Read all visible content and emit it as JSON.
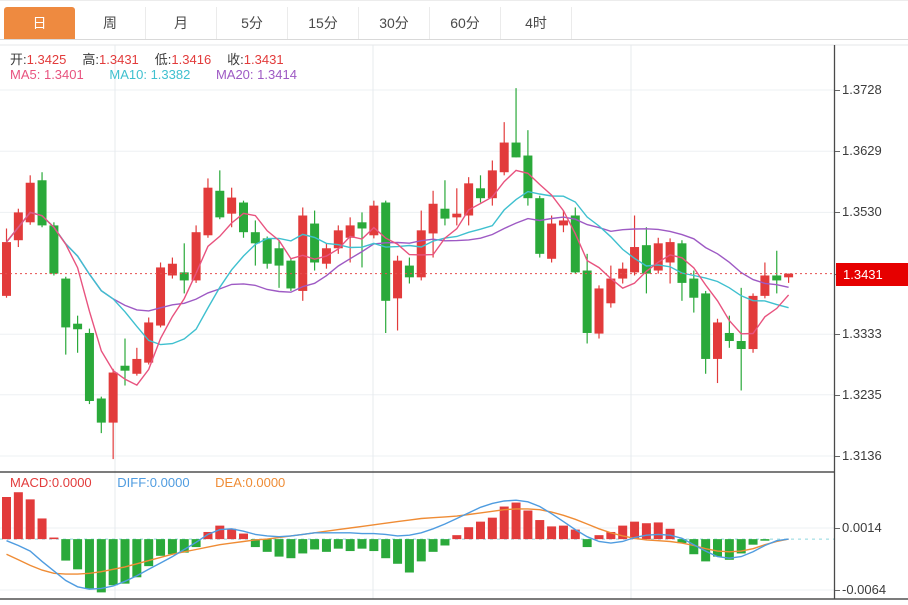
{
  "tabs": {
    "items": [
      {
        "label": "日",
        "active": true
      },
      {
        "label": "周",
        "active": false
      },
      {
        "label": "月",
        "active": false
      },
      {
        "label": "5分",
        "active": false
      },
      {
        "label": "15分",
        "active": false
      },
      {
        "label": "30分",
        "active": false
      },
      {
        "label": "60分",
        "active": false
      },
      {
        "label": "4时",
        "active": false
      }
    ]
  },
  "ohlc_bar": {
    "open_label": "开:",
    "open_value": "1.3425",
    "high_label": "高:",
    "high_value": "1.3431",
    "low_label": "低:",
    "low_value": "1.3416",
    "close_label": "收:",
    "close_value": "1.3431"
  },
  "ma_bar": {
    "ma5_label": "MA5:",
    "ma5_value": "1.3401",
    "ma10_label": "MA10:",
    "ma10_value": "1.3382",
    "ma20_label": "MA20:",
    "ma20_value": "1.3414"
  },
  "macd_bar": {
    "macd_label": "MACD:",
    "macd_value": "0.0000",
    "diff_label": "DIFF:",
    "diff_value": "0.0000",
    "dea_label": "DEA:",
    "dea_value": "0.0000"
  },
  "chart_data": {
    "type": "candlestick",
    "price_panel": {
      "yticks": [
        1.3728,
        1.3629,
        1.353,
        1.3431,
        1.3333,
        1.3235,
        1.3136
      ],
      "current_price": 1.3431,
      "current_price_label": "1.3431",
      "ma_periods": [
        5,
        10,
        20
      ],
      "candles": [
        [
          1.3395,
          1.3504,
          1.3392,
          1.3482
        ],
        [
          1.3485,
          1.3536,
          1.3474,
          1.353
        ],
        [
          1.3514,
          1.359,
          1.351,
          1.3578
        ],
        [
          1.3582,
          1.3595,
          1.3506,
          1.3509
        ],
        [
          1.3509,
          1.3514,
          1.3428,
          1.3431
        ],
        [
          1.3423,
          1.3426,
          1.33,
          1.3344
        ],
        [
          1.335,
          1.3363,
          1.3303,
          1.3341
        ],
        [
          1.3335,
          1.3342,
          1.322,
          1.3225
        ],
        [
          1.3229,
          1.3232,
          1.3173,
          1.319
        ],
        [
          1.319,
          1.3277,
          1.3131,
          1.3271
        ],
        [
          1.3282,
          1.3326,
          1.325,
          1.3274
        ],
        [
          1.3269,
          1.3311,
          1.3266,
          1.3293
        ],
        [
          1.3287,
          1.336,
          1.3284,
          1.3352
        ],
        [
          1.3347,
          1.3449,
          1.3344,
          1.3441
        ],
        [
          1.3428,
          1.3457,
          1.3423,
          1.3447
        ],
        [
          1.3433,
          1.348,
          1.3399,
          1.342
        ],
        [
          1.342,
          1.3509,
          1.3416,
          1.3498
        ],
        [
          1.3493,
          1.3585,
          1.3489,
          1.357
        ],
        [
          1.3565,
          1.3598,
          1.3519,
          1.3522
        ],
        [
          1.3528,
          1.357,
          1.3506,
          1.3554
        ],
        [
          1.3546,
          1.3549,
          1.3489,
          1.3498
        ],
        [
          1.3498,
          1.3517,
          1.3444,
          1.348
        ],
        [
          1.3488,
          1.3491,
          1.3439,
          1.3447
        ],
        [
          1.3472,
          1.3485,
          1.3408,
          1.3444
        ],
        [
          1.3452,
          1.3455,
          1.3403,
          1.3407
        ],
        [
          1.3403,
          1.3538,
          1.3387,
          1.3525
        ],
        [
          1.3512,
          1.3533,
          1.3436,
          1.3449
        ],
        [
          1.3447,
          1.348,
          1.3439,
          1.3472
        ],
        [
          1.3472,
          1.3509,
          1.3463,
          1.3501
        ],
        [
          1.3489,
          1.3522,
          1.3449,
          1.3509
        ],
        [
          1.3514,
          1.353,
          1.3441,
          1.3504
        ],
        [
          1.3493,
          1.3549,
          1.3488,
          1.3541
        ],
        [
          1.3546,
          1.3549,
          1.3335,
          1.3387
        ],
        [
          1.3391,
          1.346,
          1.3339,
          1.3452
        ],
        [
          1.3444,
          1.3457,
          1.3415,
          1.3425
        ],
        [
          1.3425,
          1.3533,
          1.342,
          1.3501
        ],
        [
          1.3496,
          1.3565,
          1.3457,
          1.3544
        ],
        [
          1.3536,
          1.3582,
          1.3509,
          1.352
        ],
        [
          1.3522,
          1.3569,
          1.3509,
          1.3528
        ],
        [
          1.3525,
          1.3587,
          1.3509,
          1.3577
        ],
        [
          1.3569,
          1.359,
          1.3546,
          1.3553
        ],
        [
          1.3553,
          1.3614,
          1.3541,
          1.3598
        ],
        [
          1.3595,
          1.3676,
          1.359,
          1.3643
        ],
        [
          1.3643,
          1.3731,
          1.3619,
          1.3619
        ],
        [
          1.3622,
          1.3663,
          1.3541,
          1.3553
        ],
        [
          1.3553,
          1.3557,
          1.3457,
          1.3463
        ],
        [
          1.3455,
          1.3525,
          1.3449,
          1.3512
        ],
        [
          1.3509,
          1.3533,
          1.3498,
          1.3517
        ],
        [
          1.3525,
          1.3538,
          1.3431,
          1.3433
        ],
        [
          1.3436,
          1.3463,
          1.3318,
          1.3335
        ],
        [
          1.3334,
          1.3412,
          1.3326,
          1.3407
        ],
        [
          1.3383,
          1.3444,
          1.3376,
          1.3423
        ],
        [
          1.3423,
          1.3449,
          1.3415,
          1.3439
        ],
        [
          1.3433,
          1.3525,
          1.3428,
          1.3474
        ],
        [
          1.3477,
          1.3506,
          1.3399,
          1.3431
        ],
        [
          1.3436,
          1.3489,
          1.3431,
          1.348
        ],
        [
          1.3449,
          1.3488,
          1.3415,
          1.3482
        ],
        [
          1.348,
          1.3485,
          1.3387,
          1.3416
        ],
        [
          1.3423,
          1.3436,
          1.3368,
          1.3392
        ],
        [
          1.3399,
          1.3403,
          1.3269,
          1.3293
        ],
        [
          1.3293,
          1.3358,
          1.3254,
          1.3352
        ],
        [
          1.3335,
          1.3363,
          1.3311,
          1.3322
        ],
        [
          1.3322,
          1.3408,
          1.3242,
          1.3309
        ],
        [
          1.3309,
          1.3399,
          1.3303,
          1.3395
        ],
        [
          1.3395,
          1.3449,
          1.3391,
          1.3428
        ],
        [
          1.3428,
          1.3468,
          1.3399,
          1.342
        ],
        [
          1.3425,
          1.3431,
          1.3416,
          1.3431
        ]
      ]
    },
    "macd_panel": {
      "yticks": [
        0.0014,
        -0.0064
      ],
      "histogram": [
        0.0053,
        0.0059,
        0.005,
        0.0026,
        0.0002,
        -0.0027,
        -0.0038,
        -0.0062,
        -0.0067,
        -0.0058,
        -0.0056,
        -0.0048,
        -0.0034,
        -0.0021,
        -0.0019,
        -0.0017,
        -0.001,
        0.0009,
        0.0017,
        0.0013,
        0.0007,
        -0.001,
        -0.0016,
        -0.0022,
        -0.0024,
        -0.0018,
        -0.0013,
        -0.0016,
        -0.0012,
        -0.0015,
        -0.0012,
        -0.0015,
        -0.0024,
        -0.0031,
        -0.0042,
        -0.0028,
        -0.0016,
        -0.0008,
        0.0005,
        0.0015,
        0.0022,
        0.0027,
        0.0041,
        0.0046,
        0.0036,
        0.0024,
        0.0016,
        0.0017,
        0.0012,
        -0.001,
        0.0005,
        0.0009,
        0.0017,
        0.0022,
        0.002,
        0.0021,
        0.0013,
        -0.0005,
        -0.0019,
        -0.0028,
        -0.0022,
        -0.0026,
        -0.0018,
        -0.0007,
        -0.0002,
        0.0,
        0.0
      ],
      "diff": [
        -0.0002,
        -0.0008,
        -0.0015,
        -0.0028,
        -0.004,
        -0.0052,
        -0.006,
        -0.0063,
        -0.0062,
        -0.0059,
        -0.0053,
        -0.0046,
        -0.0038,
        -0.003,
        -0.0022,
        -0.0013,
        -0.0004,
        0.0006,
        0.0012,
        0.0013,
        0.001,
        0.0006,
        0.0004,
        0.0003,
        0.0004,
        0.0006,
        0.0008,
        0.0008,
        0.0008,
        0.0008,
        0.0007,
        0.0007,
        0.0006,
        0.0004,
        0.0005,
        0.0008,
        0.0013,
        0.0019,
        0.0026,
        0.0033,
        0.004,
        0.0045,
        0.0048,
        0.0049,
        0.0047,
        0.0041,
        0.0032,
        0.0022,
        0.0012,
        0.0003,
        -0.0003,
        -0.0005,
        -0.0003,
        0.0002,
        0.0005,
        0.0006,
        0.0005,
        0.0001,
        -0.0007,
        -0.0015,
        -0.0022,
        -0.0024,
        -0.0022,
        -0.0016,
        -0.0008,
        -0.0002,
        0.0
      ],
      "dea": [
        -0.0019,
        -0.0026,
        -0.0033,
        -0.0039,
        -0.0043,
        -0.0044,
        -0.0044,
        -0.0043,
        -0.0041,
        -0.0038,
        -0.0035,
        -0.0031,
        -0.0027,
        -0.0023,
        -0.0019,
        -0.0016,
        -0.0013,
        -0.001,
        -0.0007,
        -0.0005,
        -0.0003,
        -0.0001,
        0.0,
        0.0002,
        0.0004,
        0.0006,
        0.0008,
        0.001,
        0.0012,
        0.0014,
        0.0016,
        0.0018,
        0.002,
        0.0022,
        0.0024,
        0.0026,
        0.0027,
        0.0028,
        0.0029,
        0.0031,
        0.0033,
        0.0035,
        0.0037,
        0.0038,
        0.0038,
        0.0037,
        0.0034,
        0.003,
        0.0025,
        0.0019,
        0.0013,
        0.0008,
        0.0004,
        0.0001,
        -0.0001,
        -0.0002,
        -0.0003,
        -0.0005,
        -0.0008,
        -0.0012,
        -0.0015,
        -0.0016,
        -0.0015,
        -0.0012,
        -0.0007,
        -0.0003,
        0.0
      ]
    },
    "colors": {
      "up": "#e23b3b",
      "down": "#2aa93a",
      "ma5": "#e8537f",
      "ma10": "#3fc0cf",
      "ma20": "#9e5ac4",
      "diff": "#4f9ce0",
      "dea": "#ef8c35",
      "grid": "#edf0f3",
      "vgrid": "#e7ebee",
      "dotted_price_line": "#e65050",
      "zero_dash_line": "#8fd8df",
      "axis_line": "#4a4a4a",
      "separator": "#2f2f2f",
      "tag_bg": "#e60000",
      "tab_active_bg": "#ee8a40"
    }
  }
}
